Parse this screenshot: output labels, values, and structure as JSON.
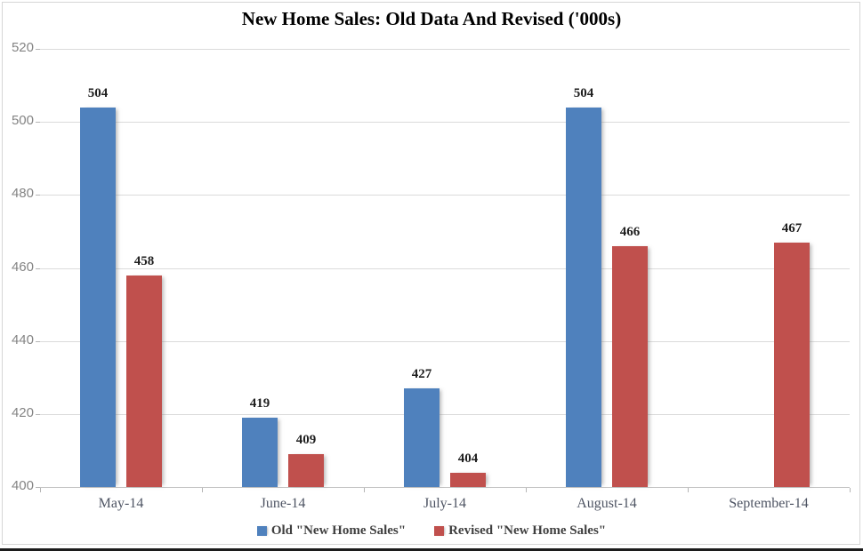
{
  "chart_data": {
    "type": "bar",
    "title": "New Home Sales: Old Data And Revised ('000s)",
    "categories": [
      "May-14",
      "June-14",
      "July-14",
      "August-14",
      "September-14"
    ],
    "series": [
      {
        "name": "Old \"New Home Sales\"",
        "color": "#4f81bd",
        "values": [
          504,
          419,
          427,
          504,
          null
        ]
      },
      {
        "name": "Revised \"New Home Sales\"",
        "color": "#c0504d",
        "values": [
          458,
          409,
          404,
          466,
          467
        ]
      }
    ],
    "ylim": [
      400,
      520
    ],
    "ytick_step": 20,
    "yticks": [
      400,
      420,
      440,
      460,
      480,
      500,
      520
    ],
    "grid": true,
    "legend_position": "bottom",
    "data_labels": true
  },
  "colors": {
    "old_series": "#4f81bd",
    "revised_series": "#c0504d",
    "gridline": "#dbdbdb",
    "axis_line": "#c3c3c3",
    "y_tick_label": "#848484",
    "category_label": "#4e5463",
    "data_label": "#1f1f1f",
    "legend_text": "#3f3f3f",
    "chart_border": "#d6d6d6",
    "background": "#ffffff"
  }
}
